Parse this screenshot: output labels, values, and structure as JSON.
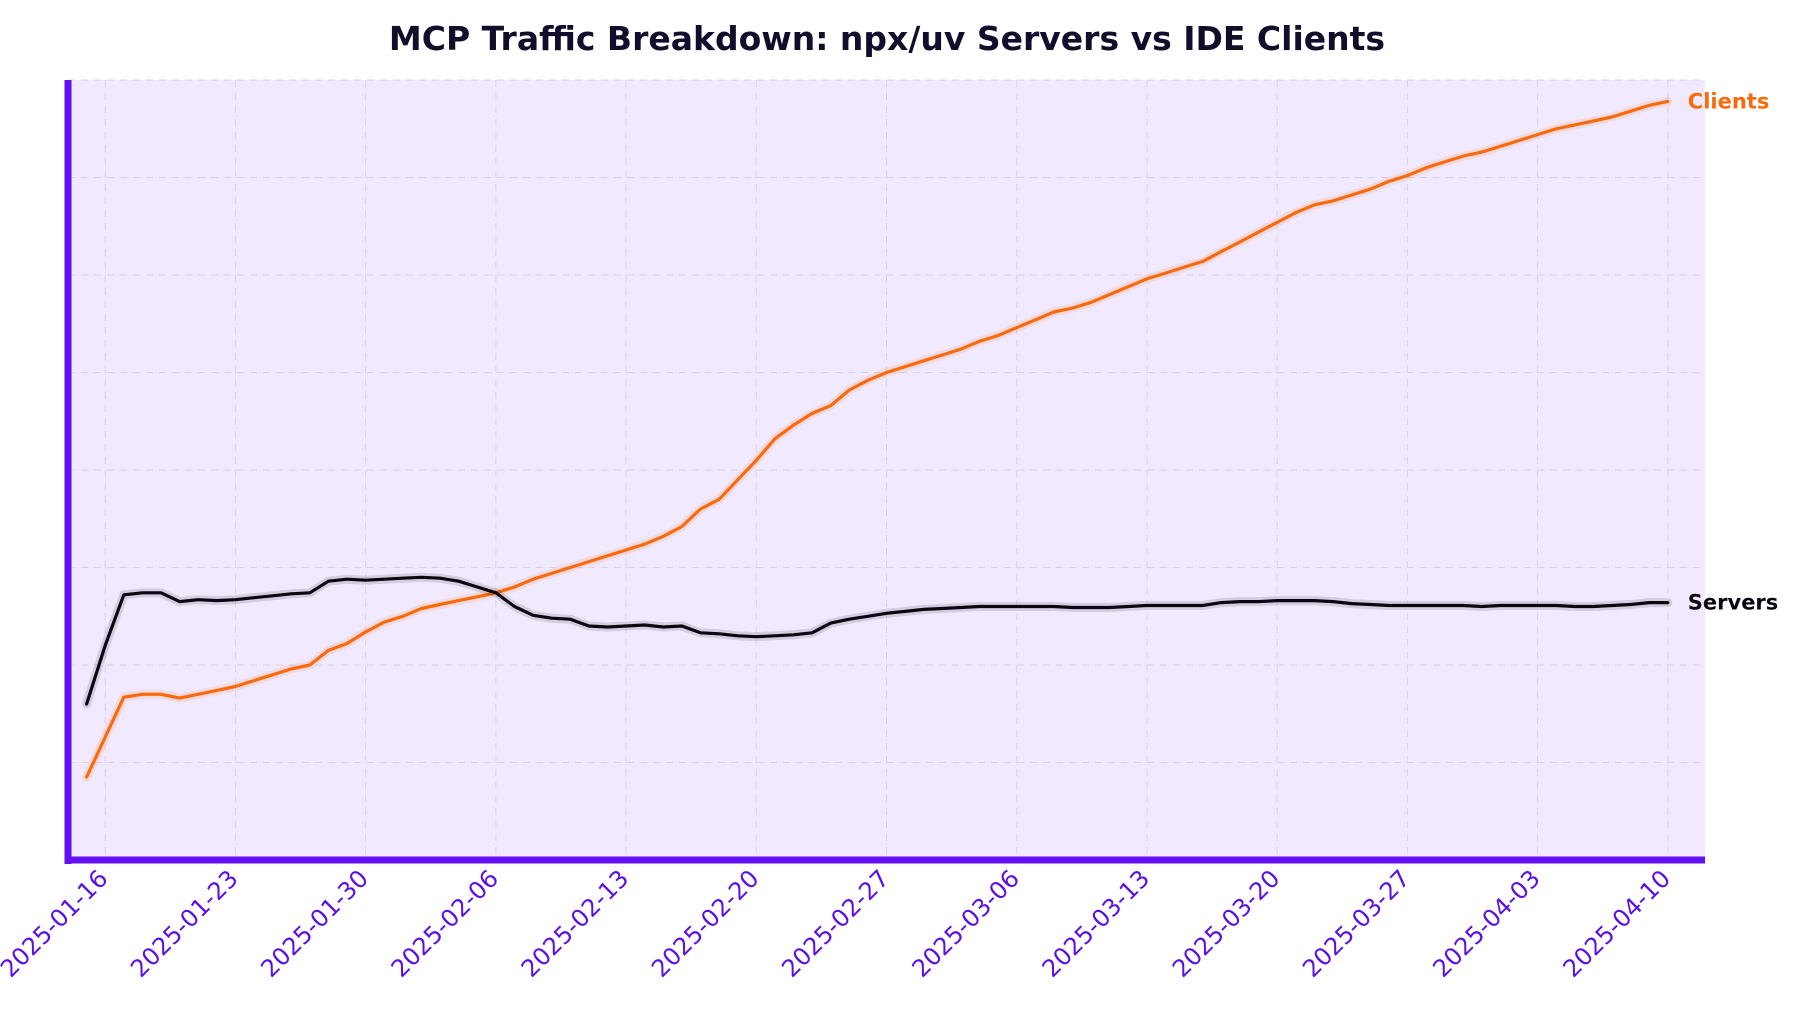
{
  "chart_data": {
    "type": "line",
    "title": "MCP Traffic Breakdown: npx/uv Servers vs IDE Clients",
    "xlabel": "",
    "ylabel": "",
    "x_tick_labels": [
      "2025-01-16",
      "2025-01-23",
      "2025-01-30",
      "2025-02-06",
      "2025-02-13",
      "2025-02-20",
      "2025-02-27",
      "2025-03-06",
      "2025-03-13",
      "2025-03-20",
      "2025-03-27",
      "2025-04-03",
      "2025-04-10"
    ],
    "xlim": [
      "2025-01-14",
      "2025-04-12"
    ],
    "ylim": [
      0,
      8
    ],
    "y_ticks_visible": false,
    "grid": true,
    "legend": "none",
    "series_labels": "line-end",
    "colors": {
      "plot_bg": "#f1e9fd",
      "axis": "#6410f5",
      "grid": "#d8cff0",
      "title": "#120d2b",
      "ticks": "#5b11e6"
    },
    "series": [
      {
        "name": "Clients",
        "color": "#fa6a0a",
        "points": [
          [
            "2025-01-15",
            0.85
          ],
          [
            "2025-01-17",
            1.67
          ],
          [
            "2025-01-18",
            1.7
          ],
          [
            "2025-01-19",
            1.7
          ],
          [
            "2025-01-20",
            1.66
          ],
          [
            "2025-01-21",
            1.7
          ],
          [
            "2025-01-22",
            1.74
          ],
          [
            "2025-01-23",
            1.78
          ],
          [
            "2025-01-24",
            1.84
          ],
          [
            "2025-01-25",
            1.9
          ],
          [
            "2025-01-26",
            1.96
          ],
          [
            "2025-01-27",
            2.0
          ],
          [
            "2025-01-28",
            2.15
          ],
          [
            "2025-01-29",
            2.22
          ],
          [
            "2025-01-30",
            2.34
          ],
          [
            "2025-01-31",
            2.44
          ],
          [
            "2025-02-01",
            2.5
          ],
          [
            "2025-02-02",
            2.58
          ],
          [
            "2025-02-03",
            2.62
          ],
          [
            "2025-02-04",
            2.66
          ],
          [
            "2025-02-05",
            2.7
          ],
          [
            "2025-02-06",
            2.74
          ],
          [
            "2025-02-07",
            2.8
          ],
          [
            "2025-02-08",
            2.88
          ],
          [
            "2025-02-09",
            2.94
          ],
          [
            "2025-02-10",
            3.0
          ],
          [
            "2025-02-11",
            3.06
          ],
          [
            "2025-02-12",
            3.12
          ],
          [
            "2025-02-13",
            3.18
          ],
          [
            "2025-02-14",
            3.24
          ],
          [
            "2025-02-15",
            3.32
          ],
          [
            "2025-02-16",
            3.42
          ],
          [
            "2025-02-17",
            3.6
          ],
          [
            "2025-02-18",
            3.7
          ],
          [
            "2025-02-19",
            3.9
          ],
          [
            "2025-02-20",
            4.1
          ],
          [
            "2025-02-21",
            4.32
          ],
          [
            "2025-02-22",
            4.46
          ],
          [
            "2025-02-23",
            4.58
          ],
          [
            "2025-02-24",
            4.66
          ],
          [
            "2025-02-25",
            4.82
          ],
          [
            "2025-02-26",
            4.92
          ],
          [
            "2025-02-27",
            5.0
          ],
          [
            "2025-02-28",
            5.06
          ],
          [
            "2025-03-01",
            5.12
          ],
          [
            "2025-03-02",
            5.18
          ],
          [
            "2025-03-03",
            5.24
          ],
          [
            "2025-03-04",
            5.32
          ],
          [
            "2025-03-05",
            5.38
          ],
          [
            "2025-03-06",
            5.46
          ],
          [
            "2025-03-07",
            5.54
          ],
          [
            "2025-03-08",
            5.62
          ],
          [
            "2025-03-09",
            5.66
          ],
          [
            "2025-03-10",
            5.72
          ],
          [
            "2025-03-11",
            5.8
          ],
          [
            "2025-03-12",
            5.88
          ],
          [
            "2025-03-13",
            5.96
          ],
          [
            "2025-03-14",
            6.02
          ],
          [
            "2025-03-15",
            6.08
          ],
          [
            "2025-03-16",
            6.14
          ],
          [
            "2025-03-17",
            6.24
          ],
          [
            "2025-03-18",
            6.34
          ],
          [
            "2025-03-19",
            6.44
          ],
          [
            "2025-03-20",
            6.54
          ],
          [
            "2025-03-21",
            6.64
          ],
          [
            "2025-03-22",
            6.72
          ],
          [
            "2025-03-23",
            6.76
          ],
          [
            "2025-03-24",
            6.82
          ],
          [
            "2025-03-25",
            6.88
          ],
          [
            "2025-03-26",
            6.96
          ],
          [
            "2025-03-27",
            7.02
          ],
          [
            "2025-03-28",
            7.1
          ],
          [
            "2025-03-29",
            7.16
          ],
          [
            "2025-03-30",
            7.22
          ],
          [
            "2025-03-31",
            7.26
          ],
          [
            "2025-04-01",
            7.32
          ],
          [
            "2025-04-02",
            7.38
          ],
          [
            "2025-04-03",
            7.44
          ],
          [
            "2025-04-04",
            7.5
          ],
          [
            "2025-04-05",
            7.54
          ],
          [
            "2025-04-06",
            7.58
          ],
          [
            "2025-04-07",
            7.62
          ],
          [
            "2025-04-08",
            7.68
          ],
          [
            "2025-04-09",
            7.74
          ],
          [
            "2025-04-10",
            7.78
          ]
        ]
      },
      {
        "name": "Servers",
        "color": "#0a0712",
        "points": [
          [
            "2025-01-15",
            1.6
          ],
          [
            "2025-01-16",
            2.2
          ],
          [
            "2025-01-17",
            2.72
          ],
          [
            "2025-01-18",
            2.74
          ],
          [
            "2025-01-19",
            2.74
          ],
          [
            "2025-01-20",
            2.65
          ],
          [
            "2025-01-21",
            2.67
          ],
          [
            "2025-01-22",
            2.66
          ],
          [
            "2025-01-23",
            2.67
          ],
          [
            "2025-01-24",
            2.69
          ],
          [
            "2025-01-25",
            2.71
          ],
          [
            "2025-01-26",
            2.73
          ],
          [
            "2025-01-27",
            2.74
          ],
          [
            "2025-01-28",
            2.86
          ],
          [
            "2025-01-29",
            2.88
          ],
          [
            "2025-01-30",
            2.87
          ],
          [
            "2025-01-31",
            2.88
          ],
          [
            "2025-02-01",
            2.89
          ],
          [
            "2025-02-02",
            2.9
          ],
          [
            "2025-02-03",
            2.89
          ],
          [
            "2025-02-04",
            2.86
          ],
          [
            "2025-02-05",
            2.8
          ],
          [
            "2025-02-06",
            2.74
          ],
          [
            "2025-02-07",
            2.6
          ],
          [
            "2025-02-08",
            2.51
          ],
          [
            "2025-02-09",
            2.48
          ],
          [
            "2025-02-10",
            2.47
          ],
          [
            "2025-02-11",
            2.4
          ],
          [
            "2025-02-12",
            2.39
          ],
          [
            "2025-02-13",
            2.4
          ],
          [
            "2025-02-14",
            2.41
          ],
          [
            "2025-02-15",
            2.39
          ],
          [
            "2025-02-16",
            2.4
          ],
          [
            "2025-02-17",
            2.33
          ],
          [
            "2025-02-18",
            2.32
          ],
          [
            "2025-02-19",
            2.3
          ],
          [
            "2025-02-20",
            2.29
          ],
          [
            "2025-02-21",
            2.3
          ],
          [
            "2025-02-22",
            2.31
          ],
          [
            "2025-02-23",
            2.33
          ],
          [
            "2025-02-24",
            2.43
          ],
          [
            "2025-02-25",
            2.47
          ],
          [
            "2025-02-26",
            2.5
          ],
          [
            "2025-02-27",
            2.53
          ],
          [
            "2025-02-28",
            2.55
          ],
          [
            "2025-03-01",
            2.57
          ],
          [
            "2025-03-02",
            2.58
          ],
          [
            "2025-03-03",
            2.59
          ],
          [
            "2025-03-04",
            2.6
          ],
          [
            "2025-03-05",
            2.6
          ],
          [
            "2025-03-06",
            2.6
          ],
          [
            "2025-03-07",
            2.6
          ],
          [
            "2025-03-08",
            2.6
          ],
          [
            "2025-03-09",
            2.59
          ],
          [
            "2025-03-10",
            2.59
          ],
          [
            "2025-03-11",
            2.59
          ],
          [
            "2025-03-12",
            2.6
          ],
          [
            "2025-03-13",
            2.61
          ],
          [
            "2025-03-14",
            2.61
          ],
          [
            "2025-03-15",
            2.61
          ],
          [
            "2025-03-16",
            2.61
          ],
          [
            "2025-03-17",
            2.64
          ],
          [
            "2025-03-18",
            2.65
          ],
          [
            "2025-03-19",
            2.65
          ],
          [
            "2025-03-20",
            2.66
          ],
          [
            "2025-03-21",
            2.66
          ],
          [
            "2025-03-22",
            2.66
          ],
          [
            "2025-03-23",
            2.65
          ],
          [
            "2025-03-24",
            2.63
          ],
          [
            "2025-03-25",
            2.62
          ],
          [
            "2025-03-26",
            2.61
          ],
          [
            "2025-03-27",
            2.61
          ],
          [
            "2025-03-28",
            2.61
          ],
          [
            "2025-03-29",
            2.61
          ],
          [
            "2025-03-30",
            2.61
          ],
          [
            "2025-03-31",
            2.6
          ],
          [
            "2025-04-01",
            2.61
          ],
          [
            "2025-04-02",
            2.61
          ],
          [
            "2025-04-03",
            2.61
          ],
          [
            "2025-04-04",
            2.61
          ],
          [
            "2025-04-05",
            2.6
          ],
          [
            "2025-04-06",
            2.6
          ],
          [
            "2025-04-07",
            2.61
          ],
          [
            "2025-04-08",
            2.62
          ],
          [
            "2025-04-09",
            2.64
          ],
          [
            "2025-04-10",
            2.64
          ]
        ]
      }
    ]
  }
}
